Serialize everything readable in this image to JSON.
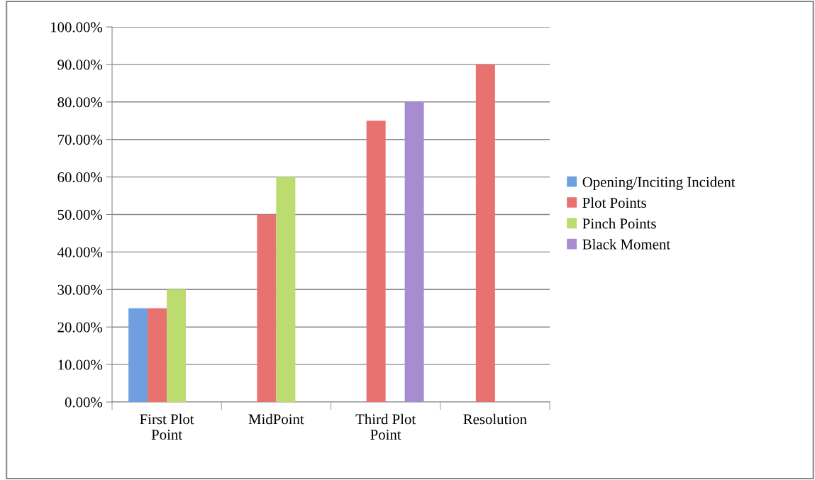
{
  "chart_data": {
    "type": "bar",
    "categories": [
      "First Plot\nPoint",
      "MidPoint",
      "Third Plot\nPoint",
      "Resolution"
    ],
    "series": [
      {
        "name": "Opening/Inciting Incident",
        "color": "#6f9fdf",
        "values": [
          25,
          null,
          null,
          null
        ]
      },
      {
        "name": "Plot Points",
        "color": "#e87270",
        "values": [
          25,
          50,
          75,
          90
        ]
      },
      {
        "name": "Pinch Points",
        "color": "#bcdc70",
        "values": [
          30,
          60,
          null,
          null
        ]
      },
      {
        "name": "Black Moment",
        "color": "#a88cd0",
        "values": [
          null,
          null,
          80,
          null
        ]
      }
    ],
    "ylim": [
      0,
      100
    ],
    "yticks": [
      {
        "value": 0,
        "label": "0.00%"
      },
      {
        "value": 10,
        "label": "10.00%"
      },
      {
        "value": 20,
        "label": "20.00%"
      },
      {
        "value": 30,
        "label": "30.00%"
      },
      {
        "value": 40,
        "label": "40.00%"
      },
      {
        "value": 50,
        "label": "50.00%"
      },
      {
        "value": 60,
        "label": "60.00%"
      },
      {
        "value": 70,
        "label": "70.00%"
      },
      {
        "value": 80,
        "label": "80.00%"
      },
      {
        "value": 90,
        "label": "90.00%"
      },
      {
        "value": 100,
        "label": "100.00%"
      }
    ],
    "grid": "y",
    "legend": "right"
  }
}
